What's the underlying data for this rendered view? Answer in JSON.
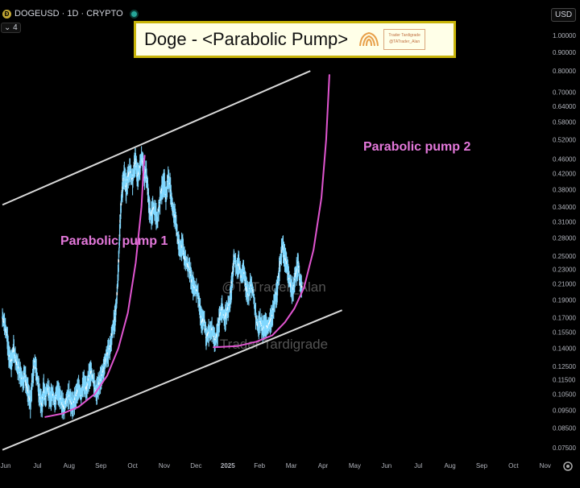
{
  "header": {
    "symbol_info": "DOGEUSD · 1D · CRYPTO",
    "indicator_badge": "4",
    "currency": "USD"
  },
  "title": {
    "text": "Doge - <Parabolic Pump>",
    "stamp_line1": "Trader Tardigrade",
    "stamp_line2": "@TATrader_Alan"
  },
  "chart_data": {
    "type": "line",
    "title": "Doge - <Parabolic Pump>",
    "xlabel": "",
    "ylabel": "",
    "y_scale": "log",
    "ylim": [
      0.07,
      1.1
    ],
    "grid": false,
    "x_axis_labels": [
      "Jun",
      "Jul",
      "Aug",
      "Sep",
      "Oct",
      "Nov",
      "Dec",
      "2025",
      "Feb",
      "Mar",
      "Apr",
      "May",
      "Jun",
      "Jul",
      "Aug",
      "Sep",
      "Oct",
      "Nov"
    ],
    "y_axis_labels": [
      "1.00000",
      "0.90000",
      "0.80000",
      "0.70000",
      "0.64000",
      "0.58000",
      "0.52000",
      "0.46000",
      "0.42000",
      "0.38000",
      "0.34000",
      "0.31000",
      "0.28000",
      "0.25000",
      "0.23000",
      "0.21000",
      "0.19000",
      "0.17000",
      "0.15500",
      "0.14000",
      "0.12500",
      "0.11500",
      "0.10500",
      "0.09500",
      "0.08500",
      "0.07500"
    ],
    "y_axis_values": [
      1.0,
      0.9,
      0.8,
      0.7,
      0.64,
      0.58,
      0.52,
      0.46,
      0.42,
      0.38,
      0.34,
      0.31,
      0.28,
      0.25,
      0.23,
      0.21,
      0.19,
      0.17,
      0.155,
      0.14,
      0.125,
      0.115,
      0.105,
      0.095,
      0.085,
      0.075
    ],
    "price_series": {
      "name": "DOGEUSD",
      "color": "#80d8ff",
      "points": [
        [
          -0.1,
          0.17
        ],
        [
          -0.02,
          0.162
        ],
        [
          0.05,
          0.15
        ],
        [
          0.1,
          0.135
        ],
        [
          0.18,
          0.128
        ],
        [
          0.25,
          0.14
        ],
        [
          0.32,
          0.13
        ],
        [
          0.4,
          0.124
        ],
        [
          0.48,
          0.118
        ],
        [
          0.55,
          0.113
        ],
        [
          0.6,
          0.121
        ],
        [
          0.65,
          0.112
        ],
        [
          0.72,
          0.106
        ],
        [
          0.78,
          0.099
        ],
        [
          0.85,
          0.118
        ],
        [
          0.92,
          0.129
        ],
        [
          1.0,
          0.116
        ],
        [
          1.05,
          0.107
        ],
        [
          1.1,
          0.101
        ],
        [
          1.15,
          0.098
        ],
        [
          1.2,
          0.11
        ],
        [
          1.25,
          0.102
        ],
        [
          1.32,
          0.11
        ],
        [
          1.4,
          0.102
        ],
        [
          1.48,
          0.106
        ],
        [
          1.55,
          0.099
        ],
        [
          1.62,
          0.108
        ],
        [
          1.7,
          0.104
        ],
        [
          1.78,
          0.099
        ],
        [
          1.85,
          0.096
        ],
        [
          1.92,
          0.102
        ],
        [
          2.0,
          0.105
        ],
        [
          2.05,
          0.1
        ],
        [
          2.12,
          0.098
        ],
        [
          2.2,
          0.103
        ],
        [
          2.3,
          0.11
        ],
        [
          2.38,
          0.104
        ],
        [
          2.45,
          0.114
        ],
        [
          2.55,
          0.108
        ],
        [
          2.62,
          0.117
        ],
        [
          2.7,
          0.121
        ],
        [
          2.78,
          0.113
        ],
        [
          2.85,
          0.106
        ],
        [
          2.92,
          0.111
        ],
        [
          3.0,
          0.116
        ],
        [
          3.08,
          0.122
        ],
        [
          3.15,
          0.131
        ],
        [
          3.22,
          0.136
        ],
        [
          3.3,
          0.142
        ],
        [
          3.38,
          0.16
        ],
        [
          3.45,
          0.17
        ],
        [
          3.5,
          0.19
        ],
        [
          3.55,
          0.23
        ],
        [
          3.6,
          0.3
        ],
        [
          3.65,
          0.36
        ],
        [
          3.7,
          0.4
        ],
        [
          3.75,
          0.42
        ],
        [
          3.8,
          0.38
        ],
        [
          3.85,
          0.41
        ],
        [
          3.92,
          0.43
        ],
        [
          4.0,
          0.4
        ],
        [
          4.05,
          0.44
        ],
        [
          4.1,
          0.46
        ],
        [
          4.15,
          0.41
        ],
        [
          4.22,
          0.43
        ],
        [
          4.28,
          0.47
        ],
        [
          4.32,
          0.45
        ],
        [
          4.38,
          0.41
        ],
        [
          4.42,
          0.43
        ],
        [
          4.48,
          0.38
        ],
        [
          4.52,
          0.34
        ],
        [
          4.58,
          0.32
        ],
        [
          4.65,
          0.34
        ],
        [
          4.72,
          0.33
        ],
        [
          4.78,
          0.31
        ],
        [
          4.85,
          0.35
        ],
        [
          4.92,
          0.38
        ],
        [
          5.0,
          0.4
        ],
        [
          5.05,
          0.36
        ],
        [
          5.12,
          0.41
        ],
        [
          5.18,
          0.39
        ],
        [
          5.22,
          0.36
        ],
        [
          5.28,
          0.33
        ],
        [
          5.35,
          0.32
        ],
        [
          5.42,
          0.28
        ],
        [
          5.5,
          0.26
        ],
        [
          5.58,
          0.27
        ],
        [
          5.62,
          0.25
        ],
        [
          5.7,
          0.24
        ],
        [
          5.8,
          0.23
        ],
        [
          5.88,
          0.21
        ],
        [
          5.95,
          0.205
        ],
        [
          6.05,
          0.2
        ],
        [
          6.12,
          0.18
        ],
        [
          6.18,
          0.165
        ],
        [
          6.25,
          0.17
        ],
        [
          6.32,
          0.15
        ],
        [
          6.4,
          0.155
        ],
        [
          6.5,
          0.158
        ],
        [
          6.6,
          0.146
        ],
        [
          6.68,
          0.156
        ],
        [
          6.75,
          0.172
        ],
        [
          6.82,
          0.18
        ],
        [
          6.9,
          0.168
        ],
        [
          6.98,
          0.178
        ],
        [
          7.05,
          0.185
        ],
        [
          7.1,
          0.2
        ],
        [
          7.15,
          0.22
        ],
        [
          7.2,
          0.25
        ],
        [
          7.28,
          0.23
        ],
        [
          7.35,
          0.24
        ],
        [
          7.42,
          0.22
        ],
        [
          7.5,
          0.23
        ],
        [
          7.58,
          0.205
        ],
        [
          7.65,
          0.195
        ],
        [
          7.72,
          0.21
        ],
        [
          7.8,
          0.2
        ],
        [
          7.88,
          0.172
        ],
        [
          7.95,
          0.16
        ],
        [
          8.02,
          0.167
        ],
        [
          8.1,
          0.158
        ],
        [
          8.18,
          0.163
        ],
        [
          8.25,
          0.16
        ],
        [
          8.32,
          0.165
        ],
        [
          8.4,
          0.172
        ],
        [
          8.48,
          0.19
        ],
        [
          8.55,
          0.2
        ],
        [
          8.6,
          0.22
        ],
        [
          8.65,
          0.24
        ],
        [
          8.72,
          0.27
        ],
        [
          8.78,
          0.25
        ],
        [
          8.85,
          0.24
        ],
        [
          8.92,
          0.22
        ],
        [
          9.0,
          0.205
        ],
        [
          9.05,
          0.2
        ],
        [
          9.12,
          0.22
        ],
        [
          9.18,
          0.23
        ],
        [
          9.22,
          0.24
        ],
        [
          9.28,
          0.21
        ],
        [
          9.35,
          0.205
        ]
      ]
    },
    "channel_lines": [
      {
        "name": "upper",
        "color": "#d9d9d9",
        "points": [
          [
            -0.1,
            0.345
          ],
          [
            9.6,
            0.8
          ]
        ]
      },
      {
        "name": "lower",
        "color": "#d9d9d9",
        "points": [
          [
            -0.1,
            0.074
          ],
          [
            10.6,
            0.178
          ]
        ]
      }
    ],
    "curves": [
      {
        "name": "Parabolic pump 1",
        "color": "#e055d0",
        "points": [
          [
            1.25,
            0.091
          ],
          [
            1.8,
            0.093
          ],
          [
            2.3,
            0.097
          ],
          [
            2.8,
            0.105
          ],
          [
            3.2,
            0.118
          ],
          [
            3.55,
            0.14
          ],
          [
            3.85,
            0.175
          ],
          [
            4.1,
            0.24
          ],
          [
            4.28,
            0.34
          ],
          [
            4.35,
            0.44
          ],
          [
            4.38,
            0.47
          ]
        ]
      },
      {
        "name": "Parabolic pump 2",
        "color": "#e055d0",
        "points": [
          [
            6.55,
            0.141
          ],
          [
            7.3,
            0.142
          ],
          [
            7.9,
            0.146
          ],
          [
            8.4,
            0.152
          ],
          [
            8.8,
            0.165
          ],
          [
            9.1,
            0.18
          ],
          [
            9.4,
            0.205
          ],
          [
            9.7,
            0.26
          ],
          [
            9.95,
            0.36
          ],
          [
            10.1,
            0.52
          ],
          [
            10.17,
            0.69
          ],
          [
            10.2,
            0.78
          ]
        ]
      }
    ],
    "annotations": [
      {
        "text": "Parabolic pump 1",
        "color": "#e478db"
      },
      {
        "text": "Parabolic pump 2",
        "color": "#e478db"
      }
    ],
    "watermarks": [
      "@TATrader_Alan",
      "Trader Tardigrade"
    ]
  }
}
